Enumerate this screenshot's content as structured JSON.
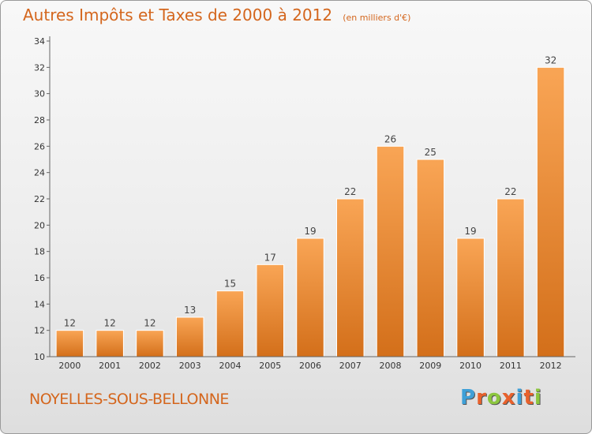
{
  "title": "Autres Impôts et Taxes de 2000 à 2012",
  "unit": "(en milliers d'€)",
  "town": "NOYELLES-SOUS-BELLONNE",
  "logo": {
    "text": "Proxiti",
    "letter_colors": [
      "#3fa0d8",
      "#e8612c",
      "#8cc63f",
      "#e8612c",
      "#3fa0d8",
      "#e8612c",
      "#8cc63f"
    ]
  },
  "colors": {
    "bar_top": "#f9a555",
    "bar_bottom": "#d36f1a",
    "text": "#d4661d",
    "axis": "#666666"
  },
  "chart_data": {
    "type": "bar",
    "categories": [
      "2000",
      "2001",
      "2002",
      "2003",
      "2004",
      "2005",
      "2006",
      "2007",
      "2008",
      "2009",
      "2010",
      "2011",
      "2012"
    ],
    "values": [
      12,
      12,
      12,
      13,
      15,
      17,
      19,
      22,
      26,
      25,
      19,
      22,
      32
    ],
    "ylim": [
      10,
      34
    ],
    "yticks": [
      10,
      12,
      14,
      16,
      18,
      20,
      22,
      24,
      26,
      28,
      30,
      32,
      34
    ],
    "grid": false,
    "legend": "none"
  }
}
